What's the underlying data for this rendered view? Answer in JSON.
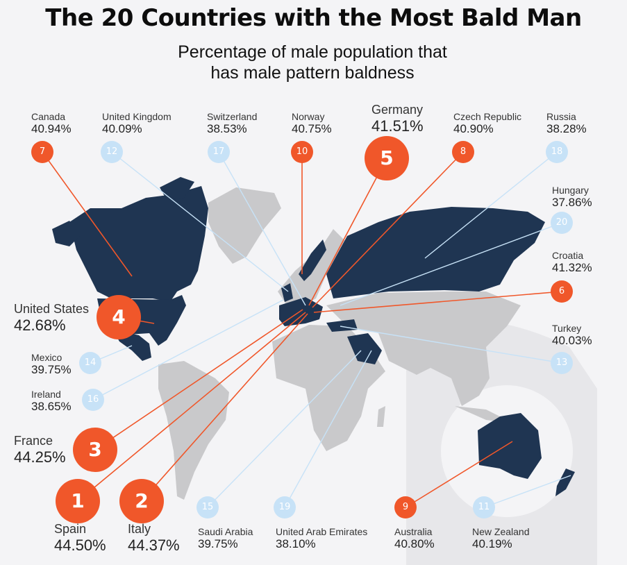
{
  "title": "The 20 Countries with the Most Bald Man",
  "subtitle_line1": "Percentage of male population that",
  "subtitle_line2": "has male pattern baldness",
  "colors": {
    "top5": "#f0572a",
    "rank6to10": "#f0572a",
    "rank11to20": "#c7e2f7",
    "highlighted_land": "#1f3552",
    "other_land": "#c9c9cb"
  },
  "chart_data": {
    "type": "map",
    "title": "The 20 Countries with the Most Bald Man",
    "subtitle": "Percentage of male population that has male pattern baldness",
    "entries": [
      {
        "rank": "1",
        "country": "Spain",
        "value": "44.50%"
      },
      {
        "rank": "2",
        "country": "Italy",
        "value": "44.37%"
      },
      {
        "rank": "3",
        "country": "France",
        "value": "44.25%"
      },
      {
        "rank": "4",
        "country": "United States",
        "value": "42.68%"
      },
      {
        "rank": "5",
        "country": "Germany",
        "value": "41.51%"
      },
      {
        "rank": "6",
        "country": "Croatia",
        "value": "41.32%"
      },
      {
        "rank": "7",
        "country": "Canada",
        "value": "40.94%"
      },
      {
        "rank": "8",
        "country": "Czech Republic",
        "value": "40.90%"
      },
      {
        "rank": "9",
        "country": "Australia",
        "value": "40.80%"
      },
      {
        "rank": "10",
        "country": "Norway",
        "value": "40.75%"
      },
      {
        "rank": "11",
        "country": "New Zealand",
        "value": "40.19%"
      },
      {
        "rank": "12",
        "country": "United Kingdom",
        "value": "40.09%"
      },
      {
        "rank": "13",
        "country": "Turkey",
        "value": "40.03%"
      },
      {
        "rank": "14",
        "country": "Mexico",
        "value": "39.75%"
      },
      {
        "rank": "15",
        "country": "Saudi Arabia",
        "value": "39.75%"
      },
      {
        "rank": "16",
        "country": "Ireland",
        "value": "38.65%"
      },
      {
        "rank": "17",
        "country": "Switzerland",
        "value": "38.53%"
      },
      {
        "rank": "18",
        "country": "Russia",
        "value": "38.28%"
      },
      {
        "rank": "19",
        "country": "United Arab Emirates",
        "value": "38.10%"
      },
      {
        "rank": "20",
        "country": "Hungary",
        "value": "37.86%"
      }
    ]
  }
}
